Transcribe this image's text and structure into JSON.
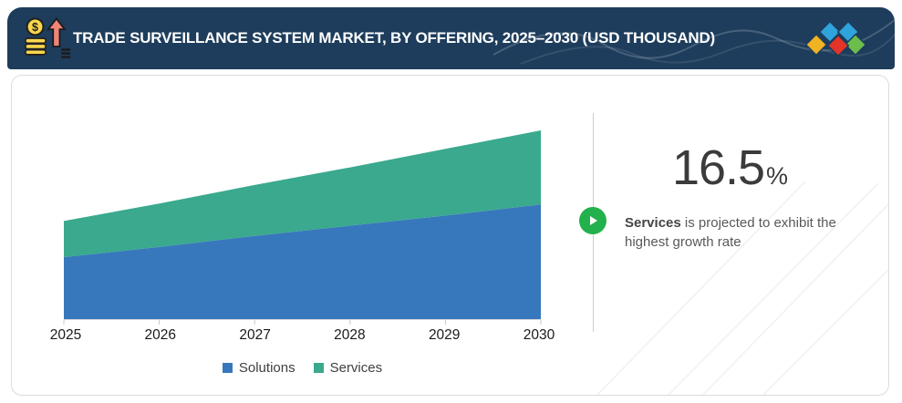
{
  "header": {
    "title": "TRADE SURVEILLANCE SYSTEM MARKET, BY OFFERING, 2025–2030 (USD THOUSAND)",
    "background_color": "#1e3d5c",
    "icon": "money-growth-icon",
    "logo_colors": {
      "yellow": "#f0b323",
      "blue": "#2fa3dc",
      "red": "#e63329",
      "green": "#6cbe4c"
    }
  },
  "chart_data": {
    "type": "area",
    "stacked": true,
    "title": "Trade Surveillance System Market, by Offering, 2025-2030 (USD Thousand)",
    "categories": [
      "2025",
      "2026",
      "2027",
      "2028",
      "2029",
      "2030"
    ],
    "series": [
      {
        "name": "Solutions",
        "color": "#3778bc",
        "values": [
          67,
          78,
          90,
          101,
          112,
          124
        ]
      },
      {
        "name": "Services",
        "color": "#3aa98e",
        "values": [
          39,
          47,
          55,
          63,
          72,
          80
        ]
      }
    ],
    "xlabel": "",
    "ylabel": "",
    "y_axis_visible": false,
    "values_note": "relative units estimated from pixel heights; no y-axis shown",
    "grid": false,
    "legend_position": "bottom"
  },
  "callout": {
    "value": "16.5",
    "unit": "%",
    "description_bold": "Services",
    "description_line1_rest": " is projected to exhibit the",
    "description_line2": "highest growth rate",
    "play_color": "#22b14c"
  }
}
